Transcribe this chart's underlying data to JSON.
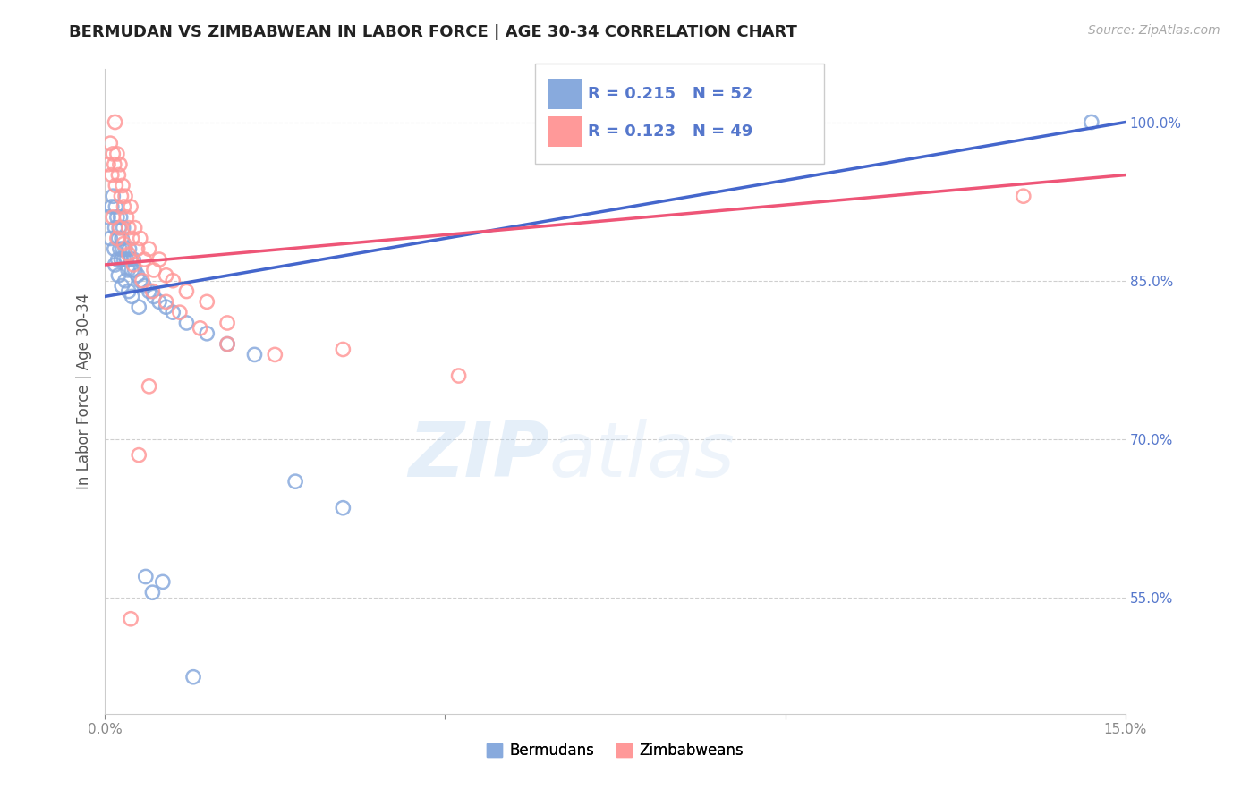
{
  "title": "BERMUDAN VS ZIMBABWEAN IN LABOR FORCE | AGE 30-34 CORRELATION CHART",
  "source": "Source: ZipAtlas.com",
  "ylabel": "In Labor Force | Age 30-34",
  "watermark_zip": "ZIP",
  "watermark_atlas": "atlas",
  "blue_R": 0.215,
  "blue_N": 52,
  "pink_R": 0.123,
  "pink_N": 49,
  "legend_labels": [
    "Bermudans",
    "Zimbabweans"
  ],
  "xlim": [
    0.0,
    15.0
  ],
  "ylim": [
    44.0,
    105.0
  ],
  "xticks": [
    0.0,
    5.0,
    10.0,
    15.0
  ],
  "xtick_labels": [
    "0.0%",
    "",
    "",
    "15.0%"
  ],
  "yticks": [
    55.0,
    70.0,
    85.0,
    100.0
  ],
  "ytick_labels": [
    "55.0%",
    "70.0%",
    "85.0%",
    "100.0%"
  ],
  "blue_color": "#88AADD",
  "pink_color": "#FF9999",
  "blue_line_color": "#4466CC",
  "pink_line_color": "#EE5577",
  "grid_color": "#BBBBBB",
  "title_color": "#222222",
  "axis_tick_color": "#888888",
  "ytick_color": "#5577CC",
  "blue_x": [
    0.05,
    0.08,
    0.1,
    0.12,
    0.14,
    0.15,
    0.16,
    0.18,
    0.19,
    0.2,
    0.21,
    0.22,
    0.23,
    0.24,
    0.25,
    0.26,
    0.27,
    0.28,
    0.3,
    0.32,
    0.34,
    0.36,
    0.38,
    0.4,
    0.42,
    0.44,
    0.48,
    0.52,
    0.58,
    0.65,
    0.72,
    0.8,
    0.9,
    1.0,
    1.2,
    1.5,
    1.8,
    2.2,
    2.8,
    3.5,
    0.15,
    0.2,
    0.25,
    0.3,
    0.35,
    0.4,
    0.5,
    0.6,
    0.7,
    0.85,
    1.3,
    14.5
  ],
  "blue_y": [
    91.0,
    89.0,
    92.0,
    93.0,
    88.0,
    90.0,
    92.0,
    91.0,
    87.0,
    89.0,
    90.0,
    88.0,
    91.0,
    87.0,
    89.0,
    88.0,
    90.0,
    87.0,
    88.0,
    87.0,
    86.0,
    88.0,
    87.0,
    86.0,
    87.0,
    86.0,
    85.5,
    85.0,
    84.5,
    84.0,
    83.5,
    83.0,
    82.5,
    82.0,
    81.0,
    80.0,
    79.0,
    78.0,
    66.0,
    63.5,
    86.5,
    85.5,
    84.5,
    85.0,
    84.0,
    83.5,
    82.5,
    57.0,
    55.5,
    56.5,
    47.5,
    100.0
  ],
  "pink_x": [
    0.05,
    0.08,
    0.1,
    0.12,
    0.14,
    0.15,
    0.16,
    0.18,
    0.2,
    0.22,
    0.24,
    0.26,
    0.28,
    0.3,
    0.32,
    0.35,
    0.38,
    0.4,
    0.44,
    0.48,
    0.52,
    0.58,
    0.65,
    0.72,
    0.8,
    0.9,
    1.0,
    1.2,
    1.5,
    0.12,
    0.18,
    0.22,
    0.28,
    0.35,
    0.42,
    0.55,
    0.7,
    0.9,
    1.1,
    1.4,
    1.8,
    2.5,
    0.38,
    0.5,
    0.65,
    1.8,
    3.5,
    5.2,
    13.5
  ],
  "pink_y": [
    96.0,
    98.0,
    95.0,
    97.0,
    96.0,
    100.0,
    94.0,
    97.0,
    95.0,
    96.0,
    93.0,
    94.0,
    92.0,
    93.0,
    91.0,
    90.0,
    92.0,
    89.0,
    90.0,
    88.0,
    89.0,
    87.0,
    88.0,
    86.0,
    87.0,
    85.5,
    85.0,
    84.0,
    83.0,
    91.0,
    89.0,
    90.0,
    88.5,
    87.5,
    86.5,
    85.0,
    84.0,
    83.0,
    82.0,
    80.5,
    79.0,
    78.0,
    53.0,
    68.5,
    75.0,
    81.0,
    78.5,
    76.0,
    93.0
  ],
  "blue_trendline_x": [
    0.0,
    15.0
  ],
  "blue_trendline_y": [
    83.5,
    100.0
  ],
  "pink_trendline_x": [
    0.0,
    15.0
  ],
  "pink_trendline_y": [
    86.5,
    95.0
  ]
}
